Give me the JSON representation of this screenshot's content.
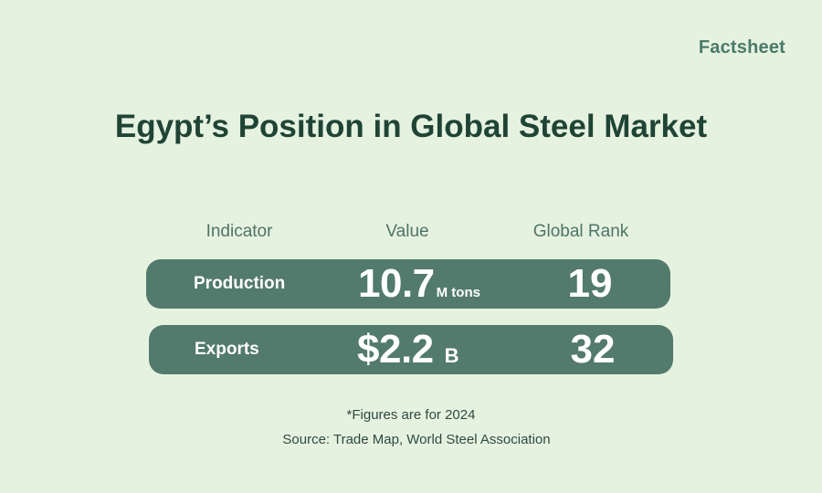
{
  "brand": "Factsheet",
  "title": "Egypt’s Position in Global Steel Market",
  "table": {
    "headers": {
      "indicator": "Indicator",
      "value": "Value",
      "rank": "Global Rank"
    },
    "rows": [
      {
        "indicator": "Production",
        "value": "10.7",
        "unit": "M tons",
        "rank": "19"
      },
      {
        "indicator": "Exports",
        "value": "$2.2",
        "unit": "B",
        "rank": "32"
      }
    ]
  },
  "note": "*Figures are for 2024",
  "source": "Source: Trade Map, World Steel Association",
  "colors": {
    "background": "#e6f2e0",
    "row_fill": "#527a6d",
    "title": "#1f4436",
    "brand": "#4a7a6a",
    "header_text": "#4e7467"
  }
}
